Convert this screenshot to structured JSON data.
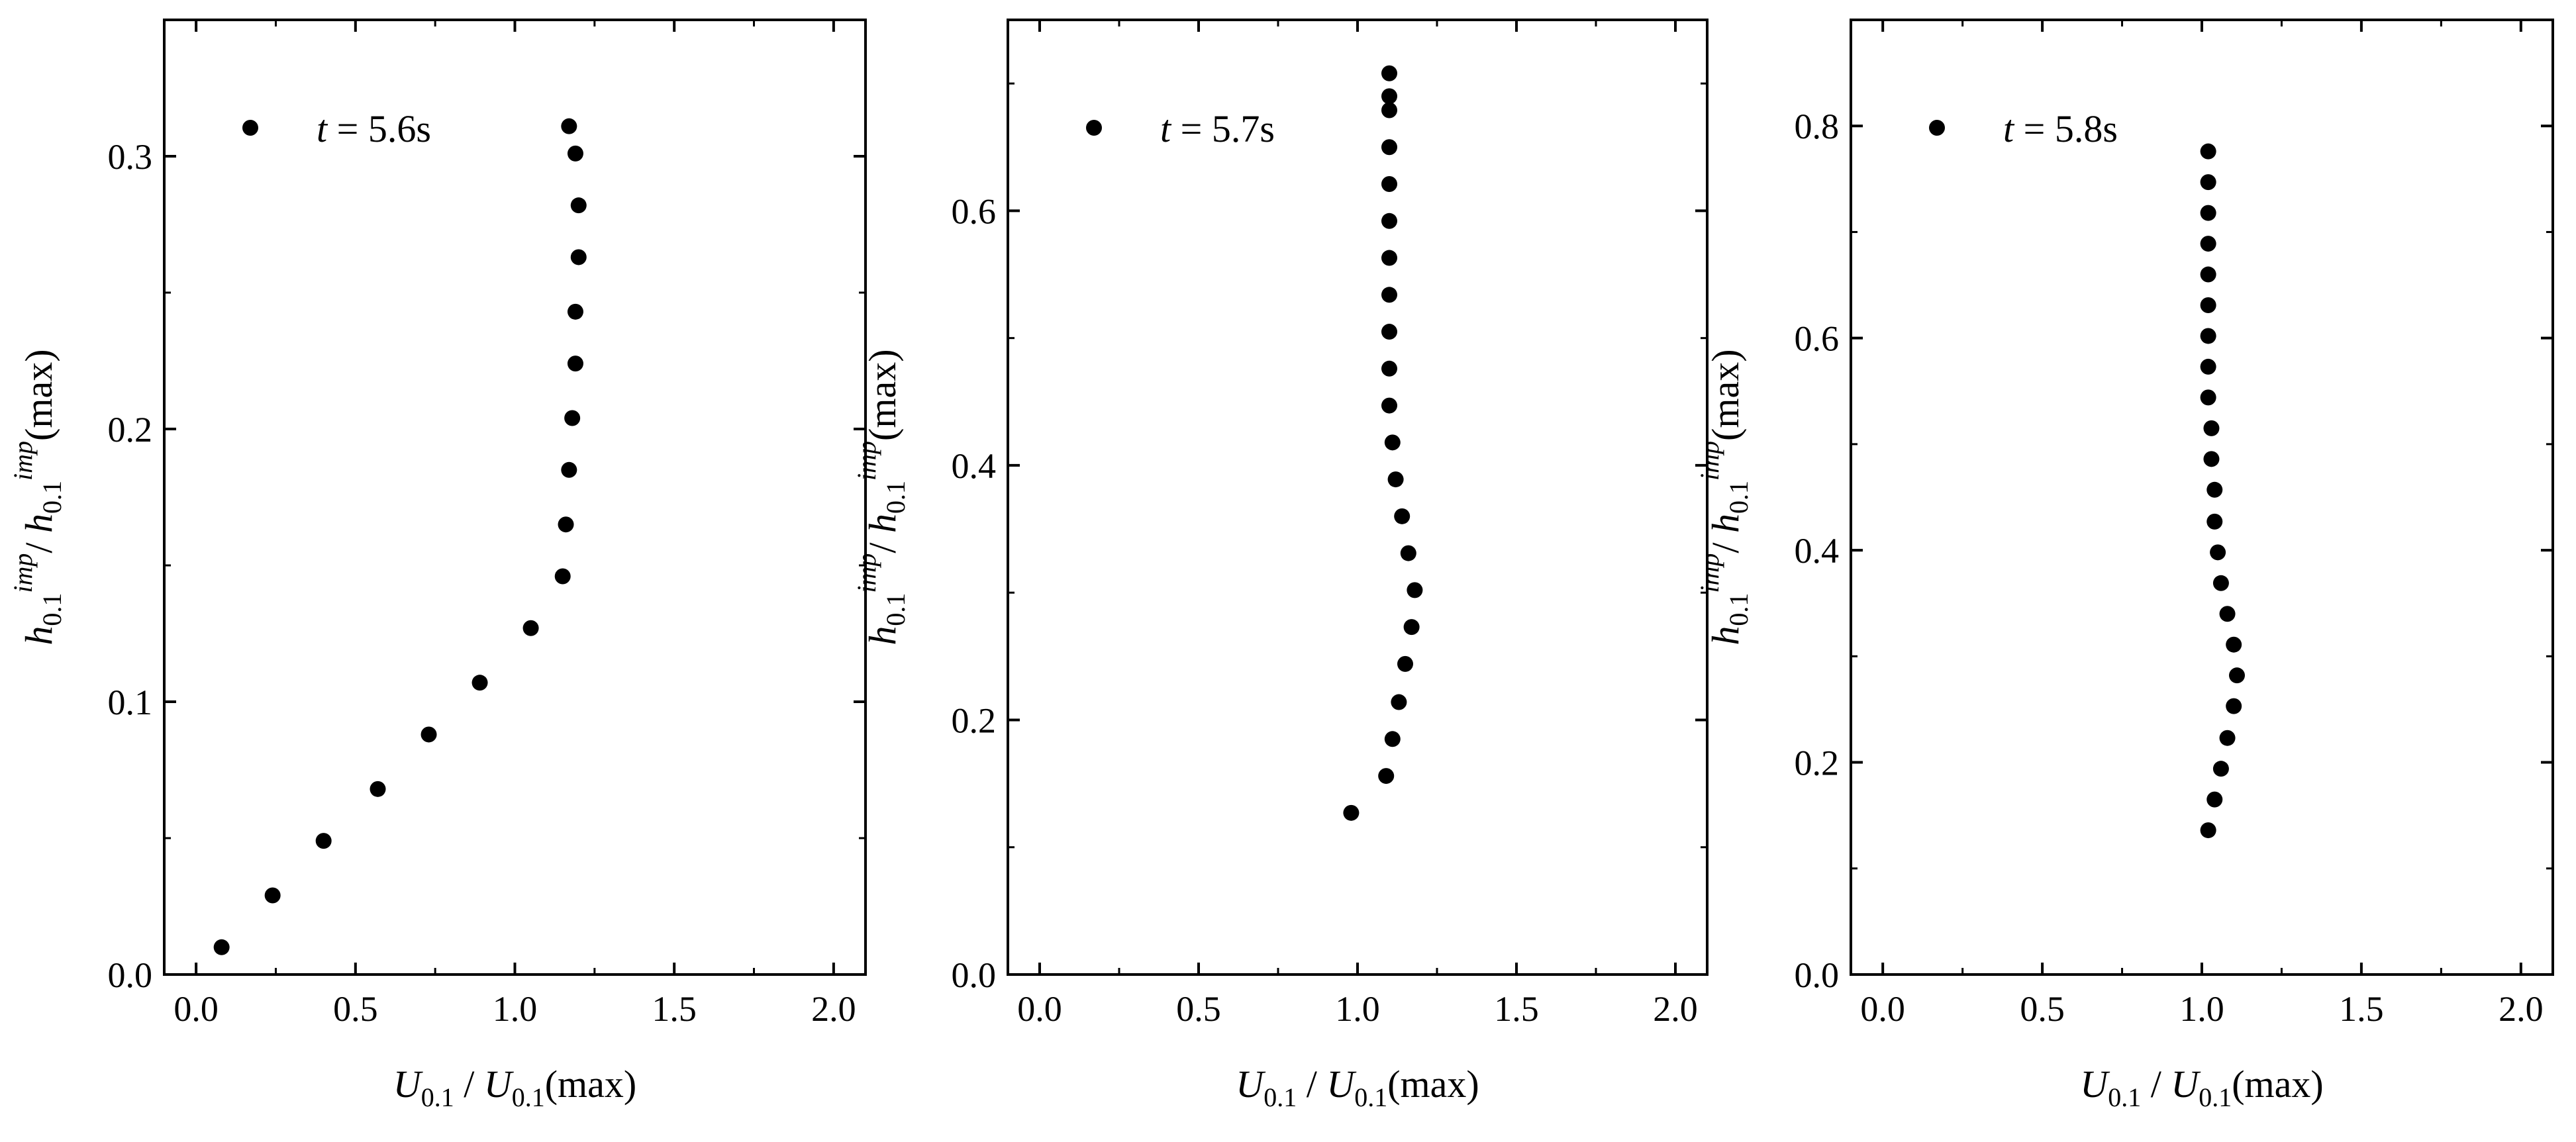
{
  "chart_data": [
    {
      "type": "scatter",
      "legend": {
        "var": "t",
        "eq": " = ",
        "value": "5.6s",
        "placement": "top-left"
      },
      "xlabel": {
        "main": "U",
        "sub": "0.1",
        "sep": " / ",
        "main2": "U",
        "sub2": "0.1",
        "tail": "(max)"
      },
      "ylabel": {
        "main": "h",
        "sub": "0.1",
        "sup": "imp",
        "sep": "/ ",
        "main2": "h",
        "sub2": "0.1",
        "sup2": "imp",
        "tail": "(max)"
      },
      "xlim": [
        -0.1,
        2.1
      ],
      "ylim": [
        0.0,
        0.35
      ],
      "xticks": [
        "0.0",
        "0.5",
        "1.0",
        "1.5",
        "2.0"
      ],
      "yticks": [
        "0.0",
        "0.1",
        "0.2",
        "0.3"
      ],
      "x": [
        0.08,
        0.24,
        0.4,
        0.57,
        0.73,
        0.89,
        1.05,
        1.15,
        1.16,
        1.17,
        1.18,
        1.19,
        1.19,
        1.2,
        1.2,
        1.19,
        1.17
      ],
      "y": [
        0.01,
        0.029,
        0.049,
        0.068,
        0.088,
        0.107,
        0.127,
        0.146,
        0.165,
        0.185,
        0.204,
        0.224,
        0.243,
        0.263,
        0.282,
        0.301,
        0.311
      ]
    },
    {
      "type": "scatter",
      "legend": {
        "var": "t",
        "eq": " = ",
        "value": "5.7s",
        "placement": "top-left"
      },
      "xlabel": {
        "main": "U",
        "sub": "0.1",
        "sep": " / ",
        "main2": "U",
        "sub2": "0.1",
        "tail": "(max)"
      },
      "ylabel": {
        "main": "h",
        "sub": "0.1",
        "sup": "imp",
        "sep": "/ ",
        "main2": "h",
        "sub2": "0.1",
        "sup2": "imp",
        "tail": "(max)"
      },
      "xlim": [
        -0.1,
        2.1
      ],
      "ylim": [
        0.0,
        0.75
      ],
      "xticks": [
        "0.0",
        "0.5",
        "1.0",
        "1.5",
        "2.0"
      ],
      "yticks": [
        "0.0",
        "0.2",
        "0.4",
        "0.6"
      ],
      "x": [
        0.98,
        1.09,
        1.11,
        1.13,
        1.15,
        1.17,
        1.18,
        1.16,
        1.14,
        1.12,
        1.11,
        1.1,
        1.1,
        1.1,
        1.1,
        1.1,
        1.1,
        1.1,
        1.1,
        1.1,
        1.1,
        1.1
      ],
      "y": [
        0.127,
        0.156,
        0.185,
        0.214,
        0.244,
        0.273,
        0.302,
        0.331,
        0.36,
        0.389,
        0.418,
        0.447,
        0.476,
        0.505,
        0.534,
        0.563,
        0.592,
        0.621,
        0.65,
        0.679,
        0.708,
        0.69
      ]
    },
    {
      "type": "scatter",
      "legend": {
        "var": "t",
        "eq": " = ",
        "value": "5.8s",
        "placement": "top-left"
      },
      "xlabel": {
        "main": "U",
        "sub": "0.1",
        "sep": " / ",
        "main2": "U",
        "sub2": "0.1",
        "tail": "(max)"
      },
      "ylabel": {
        "main": "h",
        "sub": "0.1",
        "sup": "imp",
        "sep": "/ ",
        "main2": "h",
        "sub2": "0.1",
        "sup2": "imp",
        "tail": "(max)"
      },
      "xlim": [
        -0.1,
        2.1
      ],
      "ylim": [
        0.0,
        0.9
      ],
      "xticks": [
        "0.0",
        "0.5",
        "1.0",
        "1.5",
        "2.0"
      ],
      "yticks": [
        "0.0",
        "0.2",
        "0.4",
        "0.6",
        "0.8"
      ],
      "x": [
        1.02,
        1.04,
        1.06,
        1.08,
        1.1,
        1.11,
        1.1,
        1.08,
        1.06,
        1.05,
        1.04,
        1.04,
        1.03,
        1.03,
        1.02,
        1.02,
        1.02,
        1.02,
        1.02,
        1.02,
        1.02,
        1.02,
        1.02
      ],
      "y": [
        0.136,
        0.165,
        0.194,
        0.223,
        0.253,
        0.282,
        0.311,
        0.34,
        0.369,
        0.398,
        0.427,
        0.457,
        0.486,
        0.515,
        0.544,
        0.573,
        0.602,
        0.631,
        0.66,
        0.689,
        0.718,
        0.747,
        0.776
      ]
    }
  ]
}
